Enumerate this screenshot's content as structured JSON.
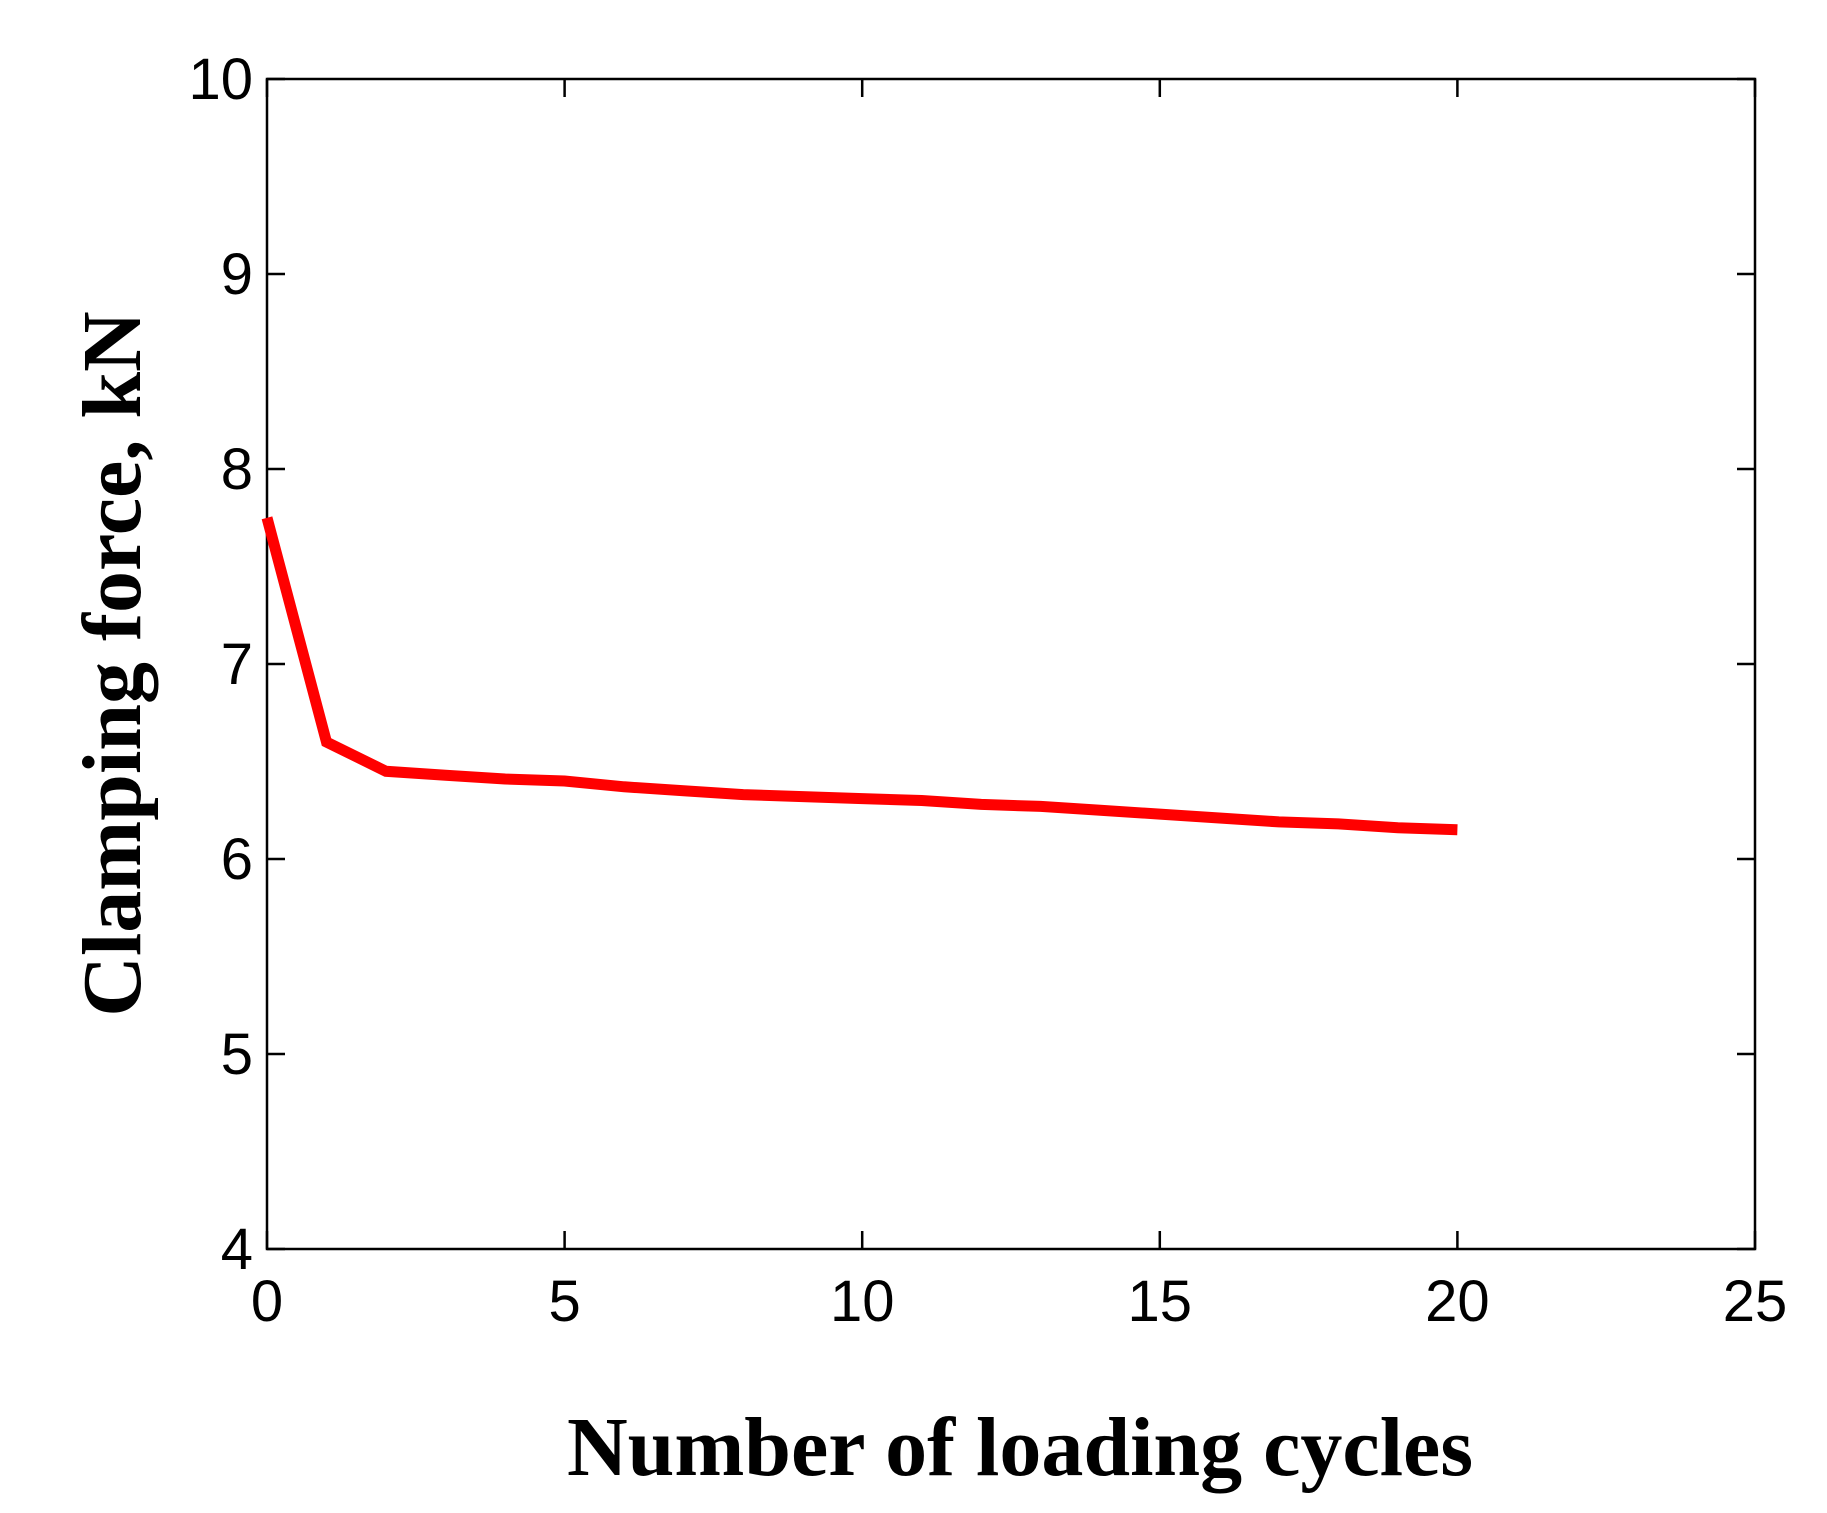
{
  "chart_data": {
    "type": "line",
    "title": "",
    "xlabel": "Number of loading cycles",
    "ylabel": "Clamping force, kN",
    "xlim": [
      0,
      25
    ],
    "ylim": [
      4,
      10
    ],
    "xticks": [
      "0",
      "5",
      "10",
      "15",
      "20",
      "25"
    ],
    "yticks": [
      "4",
      "5",
      "6",
      "7",
      "8",
      "9",
      "10"
    ],
    "grid": false,
    "legend": "none",
    "series": [
      {
        "color": "#ff0000",
        "x": [
          0,
          1,
          2,
          3,
          4,
          5,
          6,
          7,
          8,
          9,
          10,
          11,
          12,
          13,
          14,
          15,
          16,
          17,
          18,
          19,
          20
        ],
        "y": [
          7.75,
          6.6,
          6.45,
          6.43,
          6.41,
          6.4,
          6.37,
          6.35,
          6.33,
          6.32,
          6.31,
          6.3,
          6.28,
          6.27,
          6.25,
          6.23,
          6.21,
          6.19,
          6.18,
          6.16,
          6.15
        ]
      }
    ]
  }
}
